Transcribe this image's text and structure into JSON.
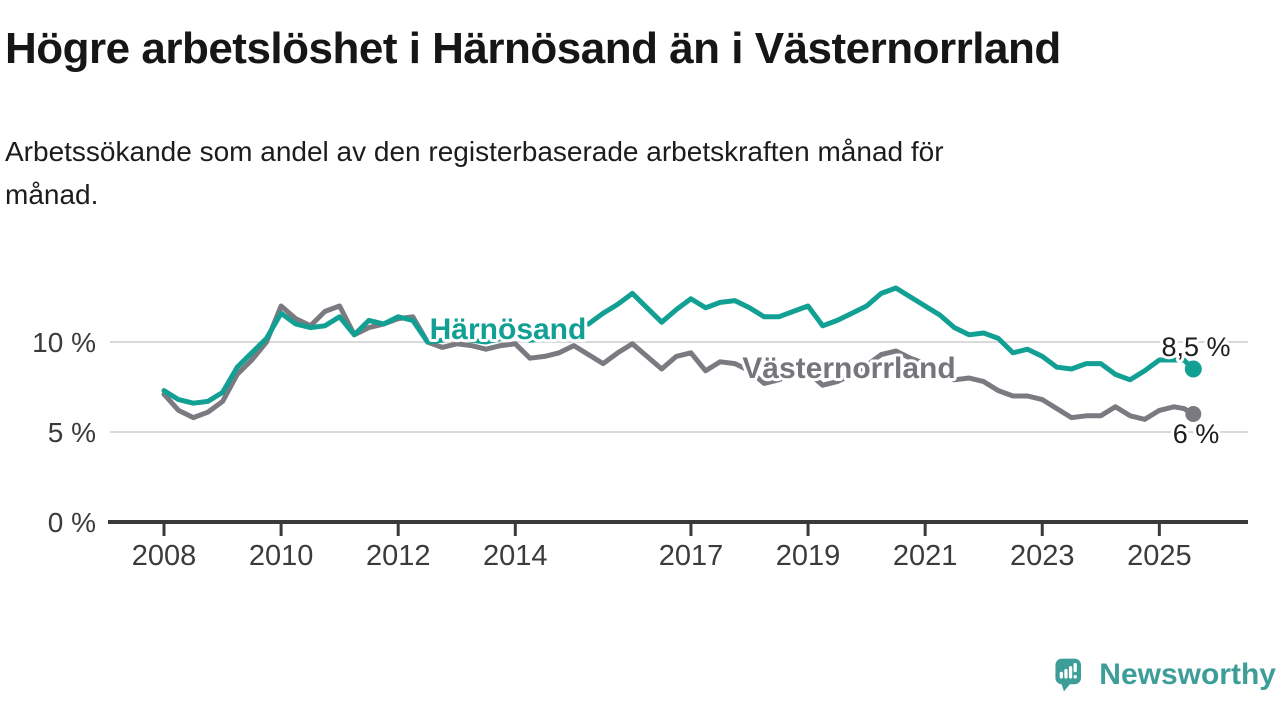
{
  "header": {
    "title": "Högre arbetslöshet i Härnösand än i Västernorrland",
    "subtitle_line1": "Arbetssökande som andel av den registerbaserade arbetskraften månad för",
    "subtitle_line2": "månad."
  },
  "chart_data": {
    "type": "line",
    "unit": "%",
    "grid": "horizontal",
    "x_range": [
      2007.1,
      2026.5
    ],
    "y_range": [
      0,
      13.5
    ],
    "x": [
      2008,
      2008.25,
      2008.5,
      2008.75,
      2009,
      2009.25,
      2009.5,
      2009.75,
      2010,
      2010.25,
      2010.5,
      2010.75,
      2011,
      2011.25,
      2011.5,
      2011.75,
      2012,
      2012.25,
      2012.5,
      2012.75,
      2013,
      2013.25,
      2013.5,
      2013.75,
      2014,
      2014.25,
      2014.5,
      2014.75,
      2015,
      2015.25,
      2015.5,
      2015.75,
      2016,
      2016.25,
      2016.5,
      2016.75,
      2017,
      2017.25,
      2017.5,
      2017.75,
      2018,
      2018.25,
      2018.5,
      2018.75,
      2019,
      2019.25,
      2019.5,
      2019.75,
      2020,
      2020.25,
      2020.5,
      2020.75,
      2021,
      2021.25,
      2021.5,
      2021.75,
      2022,
      2022.25,
      2022.5,
      2022.75,
      2023,
      2023.25,
      2023.5,
      2023.75,
      2024,
      2024.25,
      2024.5,
      2024.75,
      2025,
      2025.25,
      2025.42,
      2025.58
    ],
    "series": [
      {
        "name": "Härnösand",
        "color": "#13a094",
        "end_label": "8,5 %",
        "end_value": 8.5,
        "values": [
          7.3,
          6.8,
          6.6,
          6.7,
          7.2,
          8.6,
          9.4,
          10.2,
          11.6,
          11.0,
          10.8,
          10.9,
          11.4,
          10.4,
          11.2,
          11.0,
          11.4,
          11.2,
          10.0,
          10.1,
          10.3,
          10.1,
          10.0,
          10.2,
          10.4,
          10.1,
          10.2,
          10.5,
          10.8,
          11.0,
          11.6,
          12.1,
          12.7,
          11.9,
          11.1,
          11.8,
          12.4,
          11.9,
          12.2,
          12.3,
          11.9,
          11.4,
          11.4,
          11.7,
          12.0,
          10.9,
          11.2,
          11.6,
          12.0,
          12.7,
          13.0,
          12.5,
          12.0,
          11.5,
          10.8,
          10.4,
          10.5,
          10.2,
          9.4,
          9.6,
          9.2,
          8.6,
          8.5,
          8.8,
          8.8,
          8.2,
          7.9,
          8.4,
          9.0,
          9.0,
          9.0,
          8.5
        ]
      },
      {
        "name": "Västernorrland",
        "color": "#7b7a80",
        "end_label": "6 %",
        "end_value": 6.0,
        "values": [
          7.1,
          6.2,
          5.8,
          6.1,
          6.7,
          8.2,
          9.0,
          10.0,
          12.0,
          11.3,
          10.9,
          11.7,
          12.0,
          10.4,
          10.8,
          11.0,
          11.3,
          11.4,
          10.0,
          9.7,
          9.9,
          9.8,
          9.6,
          9.8,
          9.9,
          9.1,
          9.2,
          9.4,
          9.8,
          9.3,
          8.8,
          9.4,
          9.9,
          9.2,
          8.5,
          9.2,
          9.4,
          8.4,
          8.9,
          8.8,
          8.4,
          7.7,
          7.9,
          8.2,
          8.3,
          7.6,
          7.8,
          8.2,
          8.7,
          9.3,
          9.5,
          9.1,
          8.8,
          8.4,
          7.9,
          8.0,
          7.8,
          7.3,
          7.0,
          7.0,
          6.8,
          6.3,
          5.8,
          5.9,
          5.9,
          6.4,
          5.9,
          5.7,
          6.2,
          6.4,
          6.3,
          6.0
        ]
      }
    ],
    "x_ticks": [
      2008,
      2010,
      2012,
      2014,
      2017,
      2019,
      2021,
      2023,
      2025
    ],
    "x_tick_labels": [
      "2008",
      "2010",
      "2012",
      "2014",
      "2017",
      "2019",
      "2021",
      "2023",
      "2025"
    ],
    "y_ticks": [
      0,
      5,
      10
    ],
    "y_tick_labels": [
      "0 %",
      "5 %",
      "10 %"
    ],
    "gridline_color": "#d9d9d9",
    "axis_color": "#3a3a3a"
  },
  "footer": {
    "brand": "Newsworthy",
    "brand_color": "#3d9e99",
    "logo_icon": "bar-chart-speech-bubble-icon"
  }
}
